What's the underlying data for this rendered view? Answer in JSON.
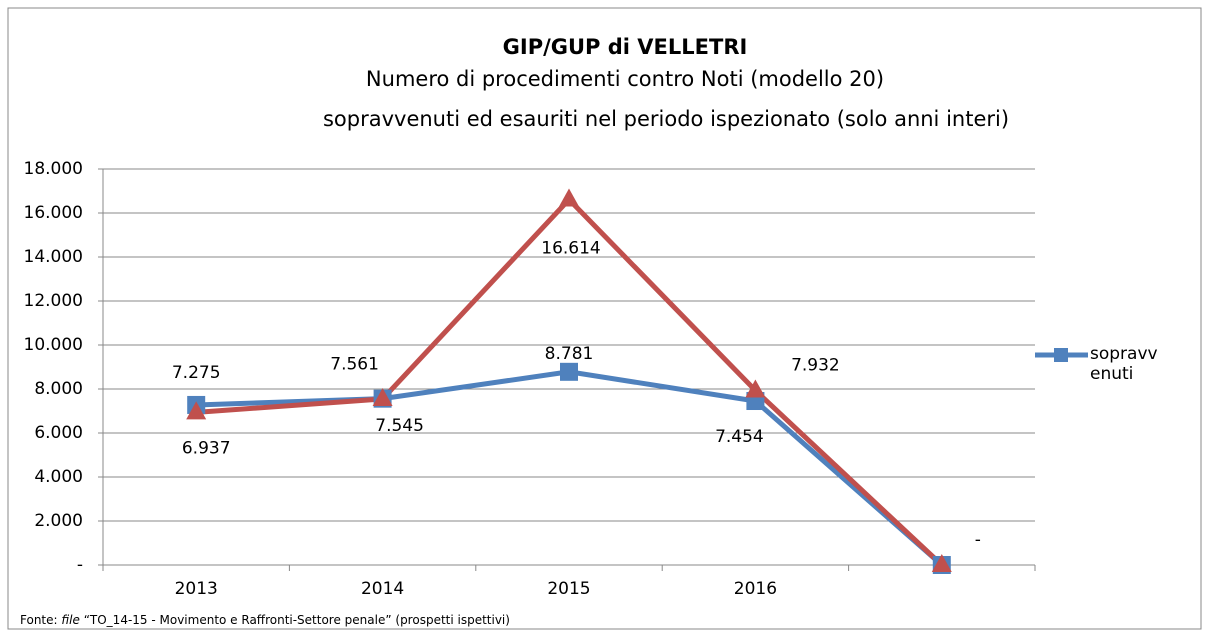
{
  "chart_data": {
    "type": "line",
    "title": "GIP/GUP di VELLETRI",
    "subtitle": [
      "Numero di procedimenti contro Noti (modello 20)",
      "sopravvenuti ed esauriti nel periodo ispezionato (solo anni interi)"
    ],
    "categories": [
      "2013",
      "2014",
      "2015",
      "2016",
      null
    ],
    "series": [
      {
        "name": "sopravvenuti",
        "color": "#4f81bd",
        "marker": "square",
        "values": [
          7275,
          7561,
          8781,
          7454,
          0
        ],
        "value_labels": [
          "7.275",
          "7.561",
          "8.781",
          "7.454",
          null
        ]
      },
      {
        "color": "#c0504d",
        "marker": "triangle",
        "values": [
          6937,
          7545,
          16614,
          7932,
          0
        ],
        "value_labels": [
          "6.937",
          "7.545",
          "16.614",
          "7.932",
          "-"
        ]
      }
    ],
    "ylim": [
      0,
      18000
    ],
    "yticks": [
      {
        "value": 0,
        "label": "-"
      },
      {
        "value": 2000,
        "label": "2.000"
      },
      {
        "value": 4000,
        "label": "4.000"
      },
      {
        "value": 6000,
        "label": "6.000"
      },
      {
        "value": 8000,
        "label": "8.000"
      },
      {
        "value": 10000,
        "label": "10.000"
      },
      {
        "value": 12000,
        "label": "12.000"
      },
      {
        "value": 14000,
        "label": "14.000"
      },
      {
        "value": 16000,
        "label": "16.000"
      },
      {
        "value": 18000,
        "label": "18.000"
      }
    ],
    "grid": true,
    "legend": "right",
    "source": {
      "prefix": "Fonte:",
      "italic": "file",
      "text": "“TO_14-15 - Movimento e Raffronti-Settore penale” (prospetti ispettivi)"
    }
  }
}
